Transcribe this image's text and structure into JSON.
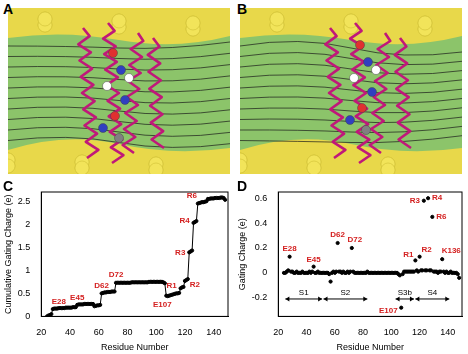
{
  "panel_labels": [
    "A",
    "B",
    "C",
    "D"
  ],
  "chart_data": [
    {
      "type": "line",
      "x": [
        24,
        25,
        26,
        27,
        28,
        29,
        30,
        31,
        32,
        33,
        34,
        35,
        36,
        37,
        38,
        39,
        40,
        41,
        42,
        43,
        44,
        45,
        46,
        47,
        48,
        49,
        50,
        51,
        52,
        53,
        54,
        55,
        56,
        57,
        58,
        59,
        60,
        61,
        62,
        63,
        64,
        65,
        66,
        67,
        68,
        69,
        70,
        71,
        72,
        73,
        74,
        75,
        76,
        77,
        78,
        79,
        80,
        81,
        82,
        83,
        84,
        85,
        86,
        87,
        88,
        89,
        90,
        91,
        92,
        93,
        94,
        95,
        96,
        97,
        98,
        99,
        100,
        101,
        102,
        103,
        104,
        105,
        106,
        107,
        108,
        109,
        110,
        111,
        112,
        113,
        114,
        115,
        116,
        117,
        118,
        119,
        120,
        121,
        122,
        123,
        124,
        125,
        126,
        127,
        128,
        129,
        130,
        131,
        132,
        133,
        134,
        135,
        136,
        137,
        138,
        139,
        140,
        141,
        142,
        143,
        144,
        145,
        146,
        147,
        148
      ],
      "values": [
        0,
        0.02,
        0.03,
        0.05,
        0.16,
        0.17,
        0.17,
        0.17,
        0.18,
        0.18,
        0.18,
        0.18,
        0.18,
        0.19,
        0.19,
        0.19,
        0.19,
        0.19,
        0.2,
        0.2,
        0.2,
        0.25,
        0.26,
        0.26,
        0.26,
        0.26,
        0.27,
        0.27,
        0.27,
        0.27,
        0.27,
        0.27,
        0.27,
        0.22,
        0.23,
        0.24,
        0.24,
        0.25,
        0.5,
        0.51,
        0.52,
        0.52,
        0.53,
        0.53,
        0.53,
        0.54,
        0.54,
        0.54,
        0.73,
        0.73,
        0.73,
        0.73,
        0.73,
        0.73,
        0.73,
        0.73,
        0.73,
        0.73,
        0.73,
        0.74,
        0.74,
        0.74,
        0.74,
        0.74,
        0.74,
        0.74,
        0.74,
        0.74,
        0.74,
        0.74,
        0.74,
        0.75,
        0.75,
        0.75,
        0.75,
        0.75,
        0.75,
        0.75,
        0.75,
        0.75,
        0.75,
        0.74,
        0.72,
        0.45,
        0.44,
        0.45,
        0.46,
        0.47,
        0.48,
        0.49,
        0.5,
        0.5,
        0.51,
        0.61,
        0.63,
        0.64,
        0.77,
        0.79,
        0.81,
        1.39,
        1.41,
        1.43,
        2.03,
        2.05,
        2.07,
        2.45,
        2.46,
        2.47,
        2.48,
        2.48,
        2.49,
        2.5,
        2.55,
        2.55,
        2.56,
        2.56,
        2.56,
        2.57,
        2.57,
        2.57,
        2.57,
        2.58,
        2.58,
        2.57,
        2.53
      ],
      "color": "#000000",
      "marker": "circle",
      "xlim": [
        20,
        150
      ],
      "xticks": [
        20,
        40,
        60,
        80,
        100,
        120,
        140
      ],
      "ylim": [
        0,
        2.7
      ],
      "yticks": [
        0,
        0.5,
        1,
        1.5,
        2,
        2.5
      ],
      "x_label": "Residue Number",
      "y_label": "Cumulative Gating Charge (e)",
      "grid": false,
      "annotations": [
        {
          "text": "E28",
          "x": 28
        },
        {
          "text": "E45",
          "x": 45
        },
        {
          "text": "D62",
          "x": 62
        },
        {
          "text": "D72",
          "x": 72
        },
        {
          "text": "E107",
          "x": 107
        },
        {
          "text": "R1",
          "x": 117
        },
        {
          "text": "R2",
          "x": 120
        },
        {
          "text": "R3",
          "x": 123
        },
        {
          "text": "R4",
          "x": 126
        },
        {
          "text": "R6",
          "x": 129
        }
      ]
    },
    {
      "type": "scatter",
      "x": [
        24,
        25,
        26,
        27,
        28,
        29,
        30,
        31,
        32,
        33,
        34,
        35,
        36,
        37,
        38,
        39,
        40,
        41,
        42,
        43,
        44,
        45,
        46,
        47,
        48,
        49,
        50,
        51,
        52,
        53,
        54,
        55,
        56,
        57,
        58,
        59,
        60,
        61,
        62,
        63,
        64,
        65,
        66,
        67,
        68,
        69,
        70,
        71,
        72,
        73,
        74,
        75,
        76,
        77,
        78,
        79,
        80,
        81,
        82,
        83,
        84,
        85,
        86,
        87,
        88,
        89,
        90,
        91,
        92,
        93,
        94,
        95,
        96,
        97,
        98,
        99,
        100,
        101,
        102,
        103,
        104,
        105,
        106,
        107,
        108,
        109,
        110,
        111,
        112,
        113,
        114,
        115,
        116,
        117,
        118,
        119,
        120,
        121,
        122,
        123,
        124,
        125,
        126,
        127,
        128,
        129,
        130,
        131,
        132,
        133,
        134,
        135,
        136,
        137,
        138,
        139,
        140,
        141,
        142,
        143,
        144,
        145,
        146,
        147,
        148
      ],
      "values": [
        0,
        0,
        0.01,
        0.02,
        0.13,
        0.01,
        0.01,
        0,
        0,
        0.01,
        0,
        0,
        0,
        0.01,
        0,
        0,
        0,
        0,
        0.01,
        0,
        0.01,
        0.05,
        0,
        0,
        0.01,
        0,
        0,
        0,
        0,
        0,
        0,
        0,
        -0.01,
        -0.07,
        0,
        0.01,
        0,
        0.01,
        0.24,
        0.01,
        0.01,
        0,
        0.01,
        0,
        0,
        0.01,
        0,
        0.01,
        0.2,
        0.01,
        0,
        0,
        0,
        0,
        0,
        0,
        0,
        0,
        0,
        0.01,
        0,
        0,
        0,
        0,
        0,
        0,
        0,
        0,
        0,
        0,
        0,
        0,
        0,
        0,
        0,
        0,
        0,
        0,
        0,
        0,
        0,
        -0.01,
        -0.02,
        -0.28,
        -0.01,
        0.01,
        0.01,
        0.01,
        0.01,
        0.01,
        0.01,
        0.01,
        0.01,
        0.1,
        0.02,
        0.01,
        0.13,
        0.02,
        0.02,
        0.58,
        0.02,
        0.02,
        0.6,
        0.02,
        0.02,
        0.45,
        0.01,
        0.01,
        0.01,
        0,
        0.01,
        0.01,
        0.11,
        0.01,
        0,
        0.01,
        0,
        0,
        0.01,
        0,
        0,
        0,
        0,
        -0.01,
        -0.04
      ],
      "color": "#000000",
      "marker": "circle",
      "xlim": [
        20,
        150
      ],
      "xticks": [
        20,
        40,
        60,
        80,
        100,
        120,
        140
      ],
      "ylim": [
        -0.35,
        0.65
      ],
      "yticks": [
        -0.2,
        0,
        0.2,
        0.4,
        0.6
      ],
      "x_label": "Residue Number",
      "y_label": "Gating Charge (e)",
      "grid": false,
      "annotations": [
        {
          "text": "E28",
          "x": 28
        },
        {
          "text": "E45",
          "x": 45
        },
        {
          "text": "D62",
          "x": 62
        },
        {
          "text": "D72",
          "x": 72
        },
        {
          "text": "E107",
          "x": 107
        },
        {
          "text": "R1",
          "x": 117
        },
        {
          "text": "R2",
          "x": 120
        },
        {
          "text": "R3",
          "x": 123
        },
        {
          "text": "R4",
          "x": 126
        },
        {
          "text": "R6",
          "x": 129
        },
        {
          "text": "K136",
          "x": 136
        }
      ],
      "segments": [
        {
          "text": "S1",
          "start": 25,
          "end": 51
        },
        {
          "text": "S2",
          "start": 52,
          "end": 83
        },
        {
          "text": "S3b",
          "start": 103,
          "end": 116
        },
        {
          "text": "S4",
          "start": 117,
          "end": 141
        }
      ]
    }
  ]
}
